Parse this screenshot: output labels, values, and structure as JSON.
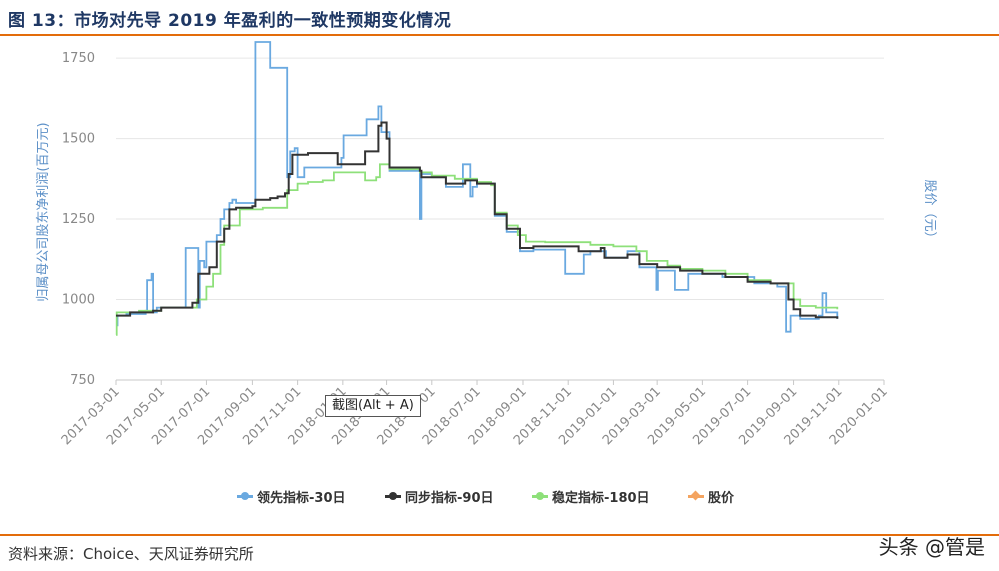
{
  "header": {
    "title": "图 13：市场对先导 2019 年盈利的一致性预期变化情况"
  },
  "footer": {
    "source": "资料来源：Choice、天风证券研究所",
    "watermark": "头条 @管是"
  },
  "tooltip": {
    "text": "截图(Alt + A)"
  },
  "colors": {
    "rule": "#e36c0a",
    "title": "#1f3864",
    "lead": "#6aa9e0",
    "sync": "#333333",
    "stable": "#8ee07a",
    "price": "#f4a460"
  },
  "chart_data": {
    "type": "line",
    "ylabel": "归属母公司股东净利润(百万元)",
    "y2label": "股价（元）",
    "ylim": [
      750,
      1800
    ],
    "yticks": [
      750,
      1000,
      1250,
      1500,
      1750
    ],
    "xlim": [
      "2017-03-01",
      "2020-01-01"
    ],
    "xticks": [
      "2017-03-01",
      "2017-05-01",
      "2017-07-01",
      "2017-09-01",
      "2017-11-01",
      "2018-01-01",
      "2018-03-01",
      "2018-05-01",
      "2018-07-01",
      "2018-09-01",
      "2018-11-01",
      "2019-01-01",
      "2019-03-01",
      "2019-05-01",
      "2019-07-01",
      "2019-09-01",
      "2019-11-01",
      "2020-01-01"
    ],
    "grid": true,
    "legend_position": "bottom",
    "series": [
      {
        "name": "领先指标-30日",
        "color": "#6aa9e0",
        "points": [
          [
            "2017-03-01",
            920
          ],
          [
            "2017-03-03",
            950
          ],
          [
            "2017-03-15",
            955
          ],
          [
            "2017-04-10",
            965
          ],
          [
            "2017-04-12",
            1060
          ],
          [
            "2017-04-18",
            1080
          ],
          [
            "2017-04-20",
            960
          ],
          [
            "2017-04-25",
            975
          ],
          [
            "2017-05-05",
            975
          ],
          [
            "2017-06-01",
            975
          ],
          [
            "2017-06-03",
            1160
          ],
          [
            "2017-06-18",
            1160
          ],
          [
            "2017-06-20",
            975
          ],
          [
            "2017-06-22",
            1120
          ],
          [
            "2017-06-28",
            1100
          ],
          [
            "2017-07-01",
            1180
          ],
          [
            "2017-07-10",
            1180
          ],
          [
            "2017-07-15",
            1200
          ],
          [
            "2017-07-20",
            1250
          ],
          [
            "2017-07-25",
            1280
          ],
          [
            "2017-08-01",
            1300
          ],
          [
            "2017-08-05",
            1310
          ],
          [
            "2017-08-10",
            1300
          ],
          [
            "2017-08-20",
            1300
          ],
          [
            "2017-09-01",
            1300
          ],
          [
            "2017-09-05",
            1800
          ],
          [
            "2017-09-25",
            1720
          ],
          [
            "2017-10-15",
            1720
          ],
          [
            "2017-10-18",
            1380
          ],
          [
            "2017-10-22",
            1460
          ],
          [
            "2017-10-28",
            1470
          ],
          [
            "2017-11-01",
            1380
          ],
          [
            "2017-11-10",
            1410
          ],
          [
            "2017-12-15",
            1410
          ],
          [
            "2017-12-30",
            1440
          ],
          [
            "2018-01-02",
            1510
          ],
          [
            "2018-01-31",
            1510
          ],
          [
            "2018-02-02",
            1560
          ],
          [
            "2018-02-15",
            1560
          ],
          [
            "2018-02-18",
            1600
          ],
          [
            "2018-02-22",
            1520
          ],
          [
            "2018-03-01",
            1520
          ],
          [
            "2018-03-05",
            1400
          ],
          [
            "2018-04-10",
            1400
          ],
          [
            "2018-04-15",
            1250
          ],
          [
            "2018-04-17",
            1390
          ],
          [
            "2018-05-01",
            1380
          ],
          [
            "2018-05-15",
            1380
          ],
          [
            "2018-05-20",
            1350
          ],
          [
            "2018-06-10",
            1350
          ],
          [
            "2018-06-12",
            1420
          ],
          [
            "2018-06-20",
            1420
          ],
          [
            "2018-06-22",
            1320
          ],
          [
            "2018-06-25",
            1350
          ],
          [
            "2018-07-01",
            1360
          ],
          [
            "2018-07-20",
            1360
          ],
          [
            "2018-07-25",
            1260
          ],
          [
            "2018-08-05",
            1260
          ],
          [
            "2018-08-10",
            1210
          ],
          [
            "2018-08-25",
            1210
          ],
          [
            "2018-08-28",
            1150
          ],
          [
            "2018-09-05",
            1150
          ],
          [
            "2018-09-15",
            1155
          ],
          [
            "2018-10-25",
            1155
          ],
          [
            "2018-10-28",
            1080
          ],
          [
            "2018-11-20",
            1080
          ],
          [
            "2018-11-22",
            1140
          ],
          [
            "2018-12-01",
            1150
          ],
          [
            "2018-12-20",
            1150
          ],
          [
            "2018-12-22",
            1130
          ],
          [
            "2019-01-10",
            1130
          ],
          [
            "2019-01-20",
            1150
          ],
          [
            "2019-02-05",
            1100
          ],
          [
            "2019-02-25",
            1100
          ],
          [
            "2019-02-28",
            1030
          ],
          [
            "2019-03-02",
            1090
          ],
          [
            "2019-03-20",
            1090
          ],
          [
            "2019-03-25",
            1030
          ],
          [
            "2019-04-10",
            1030
          ],
          [
            "2019-04-12",
            1080
          ],
          [
            "2019-05-25",
            1080
          ],
          [
            "2019-05-28",
            1070
          ],
          [
            "2019-07-10",
            1050
          ],
          [
            "2019-08-10",
            1040
          ],
          [
            "2019-08-20",
            1040
          ],
          [
            "2019-08-22",
            900
          ],
          [
            "2019-08-28",
            950
          ],
          [
            "2019-09-10",
            940
          ],
          [
            "2019-10-05",
            950
          ],
          [
            "2019-10-10",
            1020
          ],
          [
            "2019-10-15",
            960
          ],
          [
            "2019-10-25",
            960
          ],
          [
            "2019-10-30",
            940
          ]
        ]
      },
      {
        "name": "同步指标-90日",
        "color": "#333333",
        "points": [
          [
            "2017-03-01",
            950
          ],
          [
            "2017-03-20",
            960
          ],
          [
            "2017-04-20",
            965
          ],
          [
            "2017-05-01",
            975
          ],
          [
            "2017-05-20",
            975
          ],
          [
            "2017-06-01",
            975
          ],
          [
            "2017-06-10",
            975
          ],
          [
            "2017-06-12",
            990
          ],
          [
            "2017-06-20",
            1080
          ],
          [
            "2017-07-01",
            1080
          ],
          [
            "2017-07-05",
            1100
          ],
          [
            "2017-07-15",
            1180
          ],
          [
            "2017-07-25",
            1220
          ],
          [
            "2017-08-01",
            1280
          ],
          [
            "2017-08-10",
            1285
          ],
          [
            "2017-09-01",
            1290
          ],
          [
            "2017-09-05",
            1310
          ],
          [
            "2017-09-25",
            1315
          ],
          [
            "2017-10-05",
            1320
          ],
          [
            "2017-10-15",
            1330
          ],
          [
            "2017-10-20",
            1390
          ],
          [
            "2017-10-25",
            1450
          ],
          [
            "2017-11-15",
            1455
          ],
          [
            "2017-12-20",
            1455
          ],
          [
            "2017-12-25",
            1420
          ],
          [
            "2018-01-05",
            1420
          ],
          [
            "2018-01-20",
            1420
          ],
          [
            "2018-01-31",
            1460
          ],
          [
            "2018-02-15",
            1460
          ],
          [
            "2018-02-18",
            1540
          ],
          [
            "2018-02-22",
            1550
          ],
          [
            "2018-03-01",
            1500
          ],
          [
            "2018-03-05",
            1410
          ],
          [
            "2018-04-01",
            1410
          ],
          [
            "2018-04-15",
            1400
          ],
          [
            "2018-04-17",
            1380
          ],
          [
            "2018-05-15",
            1380
          ],
          [
            "2018-05-20",
            1360
          ],
          [
            "2018-06-10",
            1360
          ],
          [
            "2018-06-15",
            1370
          ],
          [
            "2018-07-01",
            1360
          ],
          [
            "2018-07-20",
            1360
          ],
          [
            "2018-07-25",
            1265
          ],
          [
            "2018-08-05",
            1265
          ],
          [
            "2018-08-10",
            1220
          ],
          [
            "2018-08-25",
            1220
          ],
          [
            "2018-08-28",
            1160
          ],
          [
            "2018-09-15",
            1165
          ],
          [
            "2018-10-15",
            1165
          ],
          [
            "2018-11-15",
            1150
          ],
          [
            "2018-12-10",
            1150
          ],
          [
            "2018-12-15",
            1160
          ],
          [
            "2018-12-20",
            1130
          ],
          [
            "2019-01-10",
            1130
          ],
          [
            "2019-01-20",
            1140
          ],
          [
            "2019-02-05",
            1110
          ],
          [
            "2019-03-01",
            1100
          ],
          [
            "2019-04-01",
            1090
          ],
          [
            "2019-05-01",
            1080
          ],
          [
            "2019-06-01",
            1070
          ],
          [
            "2019-07-01",
            1055
          ],
          [
            "2019-08-01",
            1050
          ],
          [
            "2019-08-25",
            1000
          ],
          [
            "2019-09-01",
            970
          ],
          [
            "2019-09-10",
            950
          ],
          [
            "2019-10-01",
            945
          ],
          [
            "2019-10-30",
            940
          ]
        ]
      },
      {
        "name": "稳定指标-180日",
        "color": "#8ee07a",
        "points": [
          [
            "2017-03-01",
            890
          ],
          [
            "2017-03-02",
            960
          ],
          [
            "2017-04-01",
            965
          ],
          [
            "2017-05-01",
            975
          ],
          [
            "2017-06-15",
            975
          ],
          [
            "2017-06-18",
            1000
          ],
          [
            "2017-07-01",
            1040
          ],
          [
            "2017-07-10",
            1080
          ],
          [
            "2017-07-20",
            1170
          ],
          [
            "2017-07-25",
            1230
          ],
          [
            "2017-08-05",
            1230
          ],
          [
            "2017-08-15",
            1280
          ],
          [
            "2017-09-15",
            1285
          ],
          [
            "2017-10-10",
            1285
          ],
          [
            "2017-10-18",
            1340
          ],
          [
            "2017-11-01",
            1360
          ],
          [
            "2017-11-15",
            1365
          ],
          [
            "2017-12-05",
            1370
          ],
          [
            "2017-12-20",
            1395
          ],
          [
            "2018-01-15",
            1395
          ],
          [
            "2018-01-31",
            1370
          ],
          [
            "2018-02-15",
            1380
          ],
          [
            "2018-02-20",
            1420
          ],
          [
            "2018-03-01",
            1420
          ],
          [
            "2018-03-05",
            1405
          ],
          [
            "2018-04-15",
            1395
          ],
          [
            "2018-05-01",
            1385
          ],
          [
            "2018-06-01",
            1375
          ],
          [
            "2018-07-01",
            1365
          ],
          [
            "2018-07-20",
            1355
          ],
          [
            "2018-07-25",
            1270
          ],
          [
            "2018-08-10",
            1230
          ],
          [
            "2018-08-25",
            1200
          ],
          [
            "2018-09-05",
            1180
          ],
          [
            "2018-10-01",
            1178
          ],
          [
            "2018-12-01",
            1170
          ],
          [
            "2019-01-01",
            1165
          ],
          [
            "2019-02-01",
            1150
          ],
          [
            "2019-02-15",
            1120
          ],
          [
            "2019-03-15",
            1105
          ],
          [
            "2019-04-01",
            1095
          ],
          [
            "2019-05-01",
            1090
          ],
          [
            "2019-06-01",
            1080
          ],
          [
            "2019-07-01",
            1060
          ],
          [
            "2019-08-01",
            1050
          ],
          [
            "2019-09-01",
            1000
          ],
          [
            "2019-09-10",
            980
          ],
          [
            "2019-10-01",
            975
          ],
          [
            "2019-10-30",
            970
          ]
        ]
      },
      {
        "name": "股价",
        "color": "#f4a460",
        "points": []
      }
    ]
  }
}
